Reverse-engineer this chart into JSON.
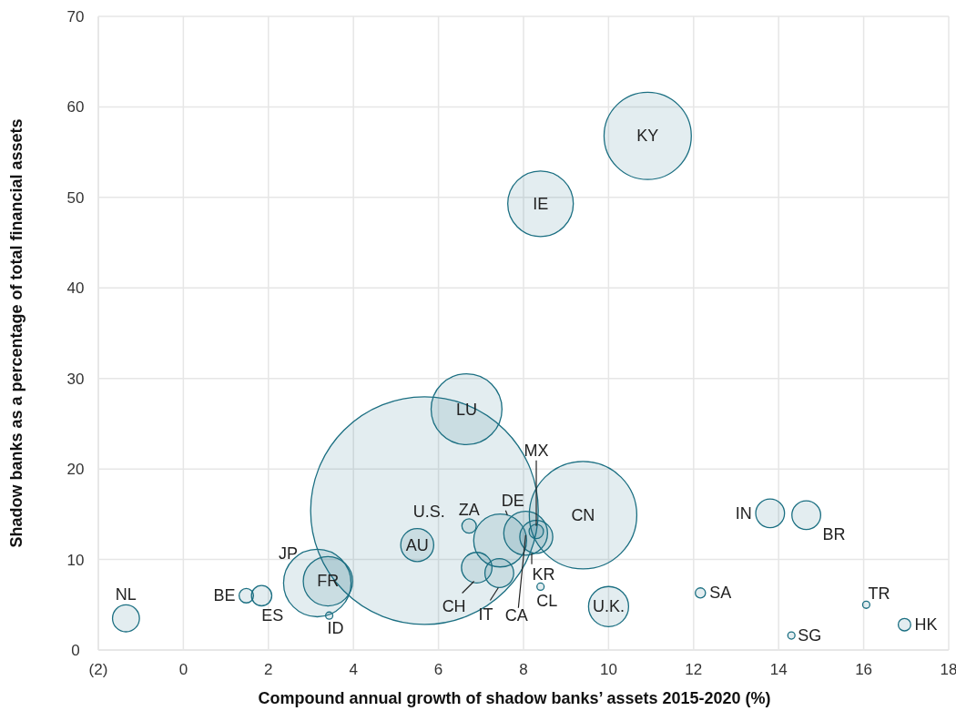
{
  "chart_data": {
    "type": "bubble",
    "xlabel": "Compound annual growth of shadow banks’ assets 2015-2020 (%)",
    "ylabel": "Shadow banks as a percentage of total financial assets",
    "xlim": [
      -2,
      18
    ],
    "xticks": [
      {
        "value": -2,
        "label": "(2)"
      },
      0,
      2,
      4,
      6,
      8,
      10,
      12,
      14,
      16,
      18
    ],
    "ylim": [
      0,
      70
    ],
    "yticks": [
      0,
      10,
      20,
      30,
      40,
      50,
      60,
      70
    ],
    "grid": true,
    "series": [
      {
        "color": "#1b6f82",
        "x": [
          -1.35,
          1.48,
          1.84,
          3.15,
          3.4,
          3.43,
          5.5,
          5.67,
          6.72,
          6.66,
          6.9,
          7.43,
          7.45,
          8.05,
          8.3,
          8.3,
          8.4,
          8.4,
          9.4,
          10.0,
          10.92,
          12.16,
          13.8,
          14.65,
          14.3,
          16.06,
          16.96
        ],
        "values": [
          3.5,
          6.0,
          6.0,
          7.4,
          7.6,
          3.8,
          11.6,
          15.4,
          13.7,
          26.6,
          9.1,
          8.5,
          12.1,
          12.9,
          12.5,
          13.1,
          7.0,
          49.3,
          14.9,
          4.8,
          56.8,
          6.3,
          15.1,
          14.9,
          1.6,
          5.0,
          2.8
        ],
        "sizes": [
          0.014,
          0.004,
          0.008,
          0.088,
          0.047,
          0.001,
          0.021,
          1,
          0.004,
          0.097,
          0.018,
          0.016,
          0.054,
          0.037,
          0.021,
          0.004,
          0.001,
          0.083,
          0.223,
          0.031,
          0.147,
          0.002,
          0.016,
          0.016,
          0.001,
          0.001,
          0.003
        ]
      }
    ],
    "annotations": [
      {
        "text": "NL",
        "x": -1.35,
        "y": 3.5
      },
      {
        "text": "BE",
        "x": 1.48,
        "y": 6.0
      },
      {
        "text": "ES",
        "x": 1.84,
        "y": 6.0
      },
      {
        "text": "JP",
        "x": 3.15,
        "y": 7.4
      },
      {
        "text": "FR",
        "x": 3.4,
        "y": 7.6
      },
      {
        "text": "ID",
        "x": 3.43,
        "y": 3.8
      },
      {
        "text": "AU",
        "x": 5.5,
        "y": 11.6
      },
      {
        "text": "U.S.",
        "x": 5.67,
        "y": 15.4
      },
      {
        "text": "ZA",
        "x": 6.72,
        "y": 13.7
      },
      {
        "text": "LU",
        "x": 6.66,
        "y": 26.6
      },
      {
        "text": "CH",
        "x": 6.9,
        "y": 9.1
      },
      {
        "text": "IT",
        "x": 7.43,
        "y": 8.5
      },
      {
        "text": "DE",
        "x": 7.45,
        "y": 12.1
      },
      {
        "text": "CA",
        "x": 8.05,
        "y": 12.9
      },
      {
        "text": "KR",
        "x": 8.3,
        "y": 12.5
      },
      {
        "text": "MX",
        "x": 8.3,
        "y": 13.1
      },
      {
        "text": "CL",
        "x": 8.4,
        "y": 7.0
      },
      {
        "text": "IE",
        "x": 8.4,
        "y": 49.3
      },
      {
        "text": "CN",
        "x": 9.4,
        "y": 14.9
      },
      {
        "text": "U.K.",
        "x": 10.0,
        "y": 4.8
      },
      {
        "text": "KY",
        "x": 10.92,
        "y": 56.8
      },
      {
        "text": "SA",
        "x": 12.16,
        "y": 6.3
      },
      {
        "text": "IN",
        "x": 13.8,
        "y": 15.1
      },
      {
        "text": "BR",
        "x": 14.65,
        "y": 14.9
      },
      {
        "text": "SG",
        "x": 14.3,
        "y": 1.6
      },
      {
        "text": "TR",
        "x": 16.06,
        "y": 5.0
      },
      {
        "text": "HK",
        "x": 16.96,
        "y": 2.8
      }
    ]
  }
}
